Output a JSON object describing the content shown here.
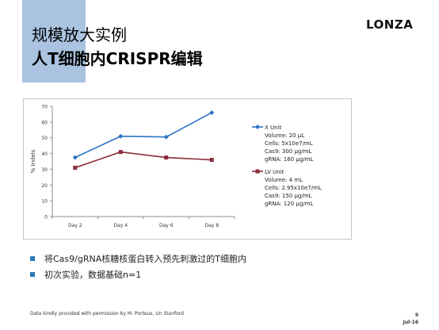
{
  "slide": {
    "title_line1": "规模放大实例",
    "title_line2": "人T细胞内CRISPR编辑",
    "logo": "LONZA",
    "bullets": [
      "将Cas9/gRNA核糖核蛋白转入预先刺激过的T细胞内",
      "初次实验，数据基础n=1"
    ],
    "footer_credit": "Data kindly provided with permission by M. Porteus, Un Stanford",
    "page_number": "9",
    "date": "Jul-16"
  },
  "colors": {
    "title_band": "#a9c3e0",
    "series_x": "#2b73c6",
    "series_lv": "#8b2a3a",
    "bullet": "#2a7ab8"
  },
  "chart_data": {
    "type": "line",
    "categories": [
      "Day 2",
      "Day 4",
      "Day 6",
      "Day 8"
    ],
    "ylabel": "% Indels",
    "xlabel": "",
    "ylim": [
      0,
      70
    ],
    "yticks": [
      0,
      10,
      20,
      30,
      40,
      50,
      60,
      70
    ],
    "grid": false,
    "legend_position": "right",
    "series": [
      {
        "name": "X Unit",
        "marker": "diamond",
        "values": [
          37.5,
          51,
          50.5,
          66
        ],
        "details": [
          "Volume: 20 µL",
          "Cells: 5x10e7/mL",
          "Cas9: 300 µg/mL",
          "gRNA: 160 µg/mL"
        ]
      },
      {
        "name": "LV Unit",
        "marker": "square",
        "values": [
          31,
          41,
          37.5,
          36
        ],
        "details": [
          "Volume: 4 mL",
          "Cells: 2.95x10e7/mL",
          "Cas9: 150 µg/mL",
          "gRNA: 120 µg/mL"
        ]
      }
    ]
  }
}
